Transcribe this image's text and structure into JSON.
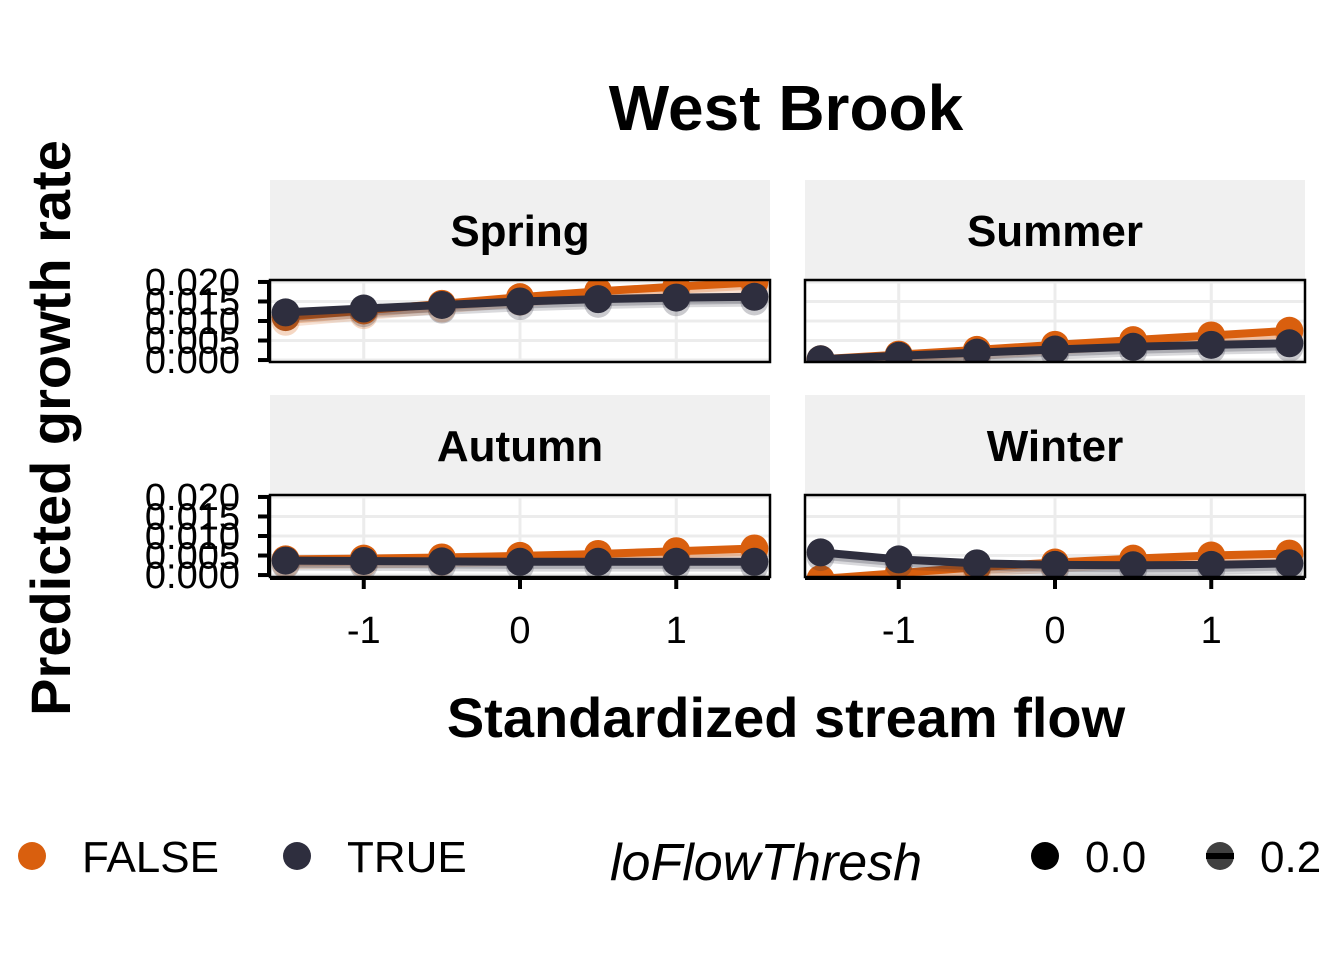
{
  "chart_data": {
    "type": "line",
    "title": "West Brook",
    "xlabel": "Standardized stream flow",
    "ylabel": "Predicted growth rate",
    "xlim": [
      -1.6,
      1.6
    ],
    "ylim": [
      -0.0005,
      0.0205
    ],
    "x_ticks": [
      "-1",
      "0",
      "1"
    ],
    "y_ticks": [
      "0.000",
      "0.005",
      "0.010",
      "0.015",
      "0.020"
    ],
    "x": [
      -1.5,
      -1.0,
      -0.5,
      0.0,
      0.5,
      1.0,
      1.5
    ],
    "grid": true,
    "panels": [
      {
        "name": "Spring",
        "series": [
          {
            "name": "FALSE",
            "values": [
              0.011,
              0.0127,
              0.0144,
              0.0161,
              0.0176,
              0.0188,
              0.0199
            ]
          },
          {
            "name": "TRUE",
            "values": [
              0.0122,
              0.0132,
              0.0141,
              0.015,
              0.0156,
              0.016,
              0.0162
            ]
          }
        ]
      },
      {
        "name": "Summer",
        "series": [
          {
            "name": "FALSE",
            "values": [
              0.0002,
              0.0014,
              0.0026,
              0.0039,
              0.0051,
              0.0063,
              0.0075
            ]
          },
          {
            "name": "TRUE",
            "values": [
              0.0002,
              0.0011,
              0.0019,
              0.0027,
              0.0034,
              0.0039,
              0.0043
            ]
          }
        ]
      },
      {
        "name": "Autumn",
        "series": [
          {
            "name": "FALSE",
            "values": [
              0.004,
              0.0042,
              0.0045,
              0.0049,
              0.0054,
              0.0061,
              0.0068
            ]
          },
          {
            "name": "TRUE",
            "values": [
              0.0037,
              0.0036,
              0.0035,
              0.0034,
              0.0034,
              0.0034,
              0.0034
            ]
          }
        ]
      },
      {
        "name": "Winter",
        "series": [
          {
            "name": "FALSE",
            "values": [
              -0.001,
              0.0005,
              0.002,
              0.0032,
              0.0042,
              0.005,
              0.0055
            ]
          },
          {
            "name": "TRUE",
            "values": [
              0.0058,
              0.004,
              0.003,
              0.0026,
              0.0025,
              0.0026,
              0.003
            ]
          }
        ]
      }
    ],
    "legend": {
      "position": "bottom",
      "color_items": [
        {
          "label": "FALSE",
          "color": "#d95f0e"
        },
        {
          "label": "TRUE",
          "color": "#2e2e3e"
        }
      ],
      "alpha_title": "loFlowThresh",
      "alpha_items": [
        "0.0",
        "0.2"
      ]
    }
  },
  "colors": {
    "false_series": "#d95f0e",
    "true_series": "#2e2e3e",
    "strip_background": "#f0f0f0",
    "grid": "#ececec"
  }
}
